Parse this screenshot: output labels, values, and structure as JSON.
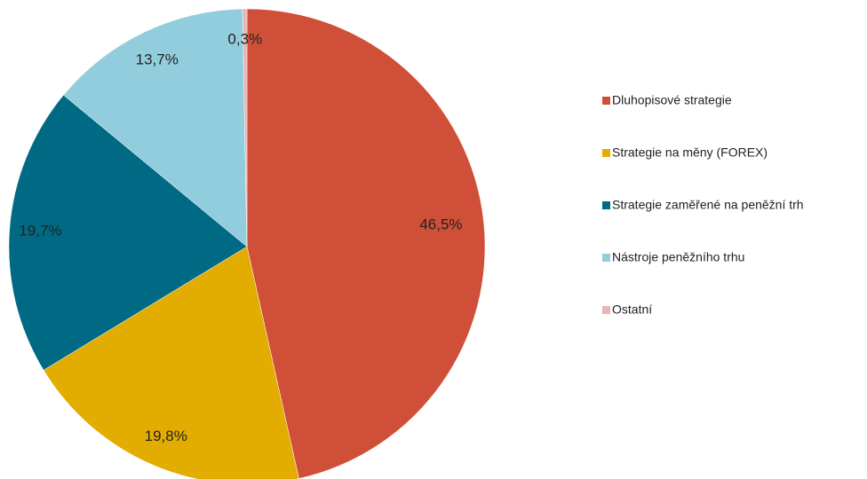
{
  "chart_data": {
    "type": "pie",
    "categories": [
      "Dluhopisové strategie",
      "Strategie na měny (FOREX)",
      "Strategie zaměřené  na peněžní  trh",
      "Nástroje peněžního  trhu",
      "Ostatní"
    ],
    "values": [
      46.5,
      19.8,
      19.7,
      13.7,
      0.3
    ],
    "value_labels": [
      "46,5%",
      "19,8%",
      "19,7%",
      "13,7%",
      "0,3%"
    ],
    "colors": [
      "#d04f38",
      "#e3ac00",
      "#006a84",
      "#92cddd",
      "#e8b4b4"
    ],
    "legend": "right"
  }
}
